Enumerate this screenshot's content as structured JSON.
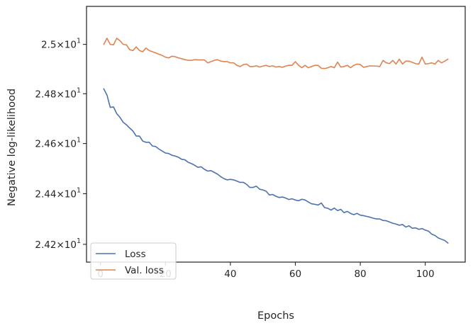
{
  "chart_data": {
    "type": "line",
    "title": "",
    "xlabel": "Epochs",
    "ylabel": "Negative log-likelihood",
    "xlim": [
      -4.3,
      112.3
    ],
    "ylim": [
      24.13,
      25.155
    ],
    "yscale": "log",
    "grid": false,
    "legend_position": "lower-left",
    "x_ticks": [
      0,
      20,
      40,
      60,
      80,
      100
    ],
    "x_tick_labels": [
      "0",
      "20",
      "40",
      "60",
      "80",
      "100"
    ],
    "y_ticks": [
      24.2,
      24.4,
      24.6,
      24.8,
      25.0
    ],
    "y_tick_bases": [
      "2.42",
      "2.44",
      "2.46",
      "2.48",
      "2.5"
    ],
    "y_tick_times": "×",
    "y_tick_exp_base": "10",
    "y_tick_exponent": "1",
    "x": [
      1,
      2,
      3,
      4,
      5,
      6,
      7,
      8,
      9,
      10,
      11,
      12,
      13,
      14,
      15,
      16,
      17,
      18,
      19,
      20,
      21,
      22,
      23,
      24,
      25,
      26,
      27,
      28,
      29,
      30,
      31,
      32,
      33,
      34,
      35,
      36,
      37,
      38,
      39,
      40,
      41,
      42,
      43,
      44,
      45,
      46,
      47,
      48,
      49,
      50,
      51,
      52,
      53,
      54,
      55,
      56,
      57,
      58,
      59,
      60,
      61,
      62,
      63,
      64,
      65,
      66,
      67,
      68,
      69,
      70,
      71,
      72,
      73,
      74,
      75,
      76,
      77,
      78,
      79,
      80,
      81,
      82,
      83,
      84,
      85,
      86,
      87,
      88,
      89,
      90,
      91,
      92,
      93,
      94,
      95,
      96,
      97,
      98,
      99,
      100,
      101,
      102,
      103,
      104,
      105,
      106,
      107
    ],
    "series": [
      {
        "name": "Loss",
        "color": "#4c72b0",
        "values": [
          24.82,
          24.795,
          24.745,
          24.747,
          24.72,
          24.705,
          24.685,
          24.675,
          24.662,
          24.65,
          24.63,
          24.63,
          24.61,
          24.605,
          24.605,
          24.59,
          24.588,
          24.578,
          24.57,
          24.562,
          24.56,
          24.553,
          24.55,
          24.545,
          24.537,
          24.535,
          24.525,
          24.52,
          24.513,
          24.505,
          24.507,
          24.497,
          24.49,
          24.492,
          24.485,
          24.478,
          24.468,
          24.46,
          24.455,
          24.457,
          24.455,
          24.45,
          24.445,
          24.445,
          24.437,
          24.425,
          24.425,
          24.43,
          24.418,
          24.415,
          24.41,
          24.395,
          24.397,
          24.39,
          24.385,
          24.387,
          24.383,
          24.377,
          24.38,
          24.375,
          24.372,
          24.378,
          24.375,
          24.367,
          24.36,
          24.358,
          24.355,
          24.363,
          24.345,
          24.342,
          24.335,
          24.343,
          24.333,
          24.338,
          24.325,
          24.33,
          24.322,
          24.317,
          24.322,
          24.315,
          24.313,
          24.31,
          24.307,
          24.303,
          24.3,
          24.3,
          24.294,
          24.293,
          24.288,
          24.283,
          24.28,
          24.275,
          24.278,
          24.268,
          24.273,
          24.263,
          24.265,
          24.259,
          24.262,
          24.256,
          24.252,
          24.24,
          24.235,
          24.225,
          24.22,
          24.215,
          24.205
        ]
      },
      {
        "name": "Val. loss",
        "color": "#dd8452",
        "values": [
          25.0,
          25.025,
          25.0,
          24.998,
          25.025,
          25.015,
          25.0,
          24.998,
          24.978,
          24.975,
          24.99,
          24.975,
          24.97,
          24.985,
          24.975,
          24.97,
          24.965,
          24.96,
          24.955,
          24.948,
          24.945,
          24.952,
          24.95,
          24.945,
          24.942,
          24.938,
          24.935,
          24.935,
          24.938,
          24.937,
          24.937,
          24.937,
          24.925,
          24.93,
          24.935,
          24.938,
          24.932,
          24.93,
          24.93,
          24.925,
          24.925,
          24.915,
          24.91,
          24.918,
          24.92,
          24.91,
          24.91,
          24.913,
          24.908,
          24.912,
          24.915,
          24.91,
          24.913,
          24.908,
          24.91,
          24.907,
          24.912,
          24.915,
          24.915,
          24.93,
          24.915,
          24.905,
          24.915,
          24.905,
          24.91,
          24.915,
          24.915,
          24.903,
          24.902,
          24.905,
          24.91,
          24.905,
          24.928,
          24.908,
          24.91,
          24.915,
          24.905,
          24.915,
          24.92,
          24.918,
          24.907,
          24.91,
          24.913,
          24.912,
          24.912,
          24.91,
          24.935,
          24.925,
          24.922,
          24.935,
          24.92,
          24.94,
          24.92,
          24.932,
          24.932,
          24.927,
          24.922,
          24.92,
          24.948,
          24.92,
          24.922,
          24.925,
          24.92,
          24.935,
          24.925,
          24.932,
          24.94
        ]
      }
    ]
  }
}
